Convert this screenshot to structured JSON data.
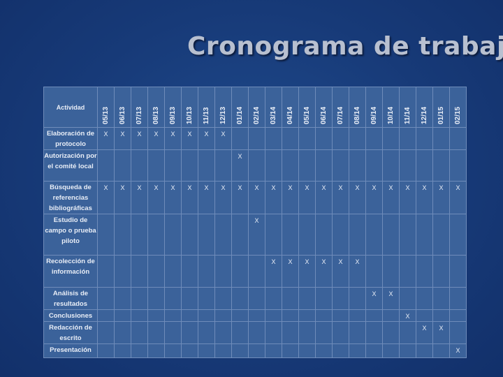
{
  "title": "Cronograma de trabajo",
  "header_activity": "Actividad",
  "months": [
    "05/13",
    "06/13",
    "07/13",
    "08/13",
    "09/13",
    "10/13",
    "11/13",
    "12/13",
    "01/14",
    "02/14",
    "03/14",
    "04/14",
    "05/14",
    "06/14",
    "07/14",
    "08/14",
    "09/14",
    "10/14",
    "11/14",
    "12/14",
    "01/15",
    "02/15"
  ],
  "mark": "X",
  "activities": [
    {
      "label": "Elaboración de protocolo",
      "months": [
        0,
        1,
        2,
        3,
        4,
        5,
        6,
        7
      ]
    },
    {
      "label": "Autorización por el comité local",
      "months": [
        8
      ]
    },
    {
      "label": "Búsqueda de referencias bibliográficas",
      "months": [
        0,
        1,
        2,
        3,
        4,
        5,
        6,
        7,
        8,
        9,
        10,
        11,
        12,
        13,
        14,
        15,
        16,
        17,
        18,
        19,
        20,
        21
      ]
    },
    {
      "label": "Estudio de campo o prueba piloto",
      "months": [
        9
      ]
    },
    {
      "label": "Recolección de información",
      "months": [
        10,
        11,
        12,
        13,
        14,
        15
      ]
    },
    {
      "label": "Análisis de resultados",
      "months": [
        16,
        17
      ]
    },
    {
      "label": "Conclusiones",
      "months": [
        18
      ]
    },
    {
      "label": "Redacción de escrito",
      "months": [
        19,
        20
      ]
    },
    {
      "label": "Presentación",
      "months": [
        21
      ]
    }
  ]
}
